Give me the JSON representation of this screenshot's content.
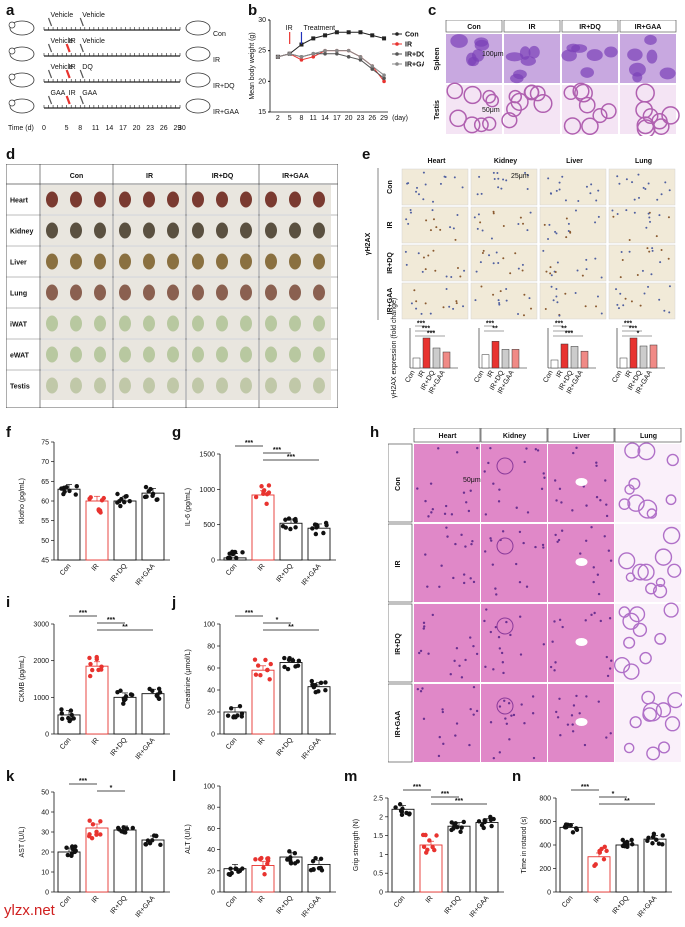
{
  "labels": {
    "a": "a",
    "b": "b",
    "c": "c",
    "d": "d",
    "e": "e",
    "f": "f",
    "g": "g",
    "h": "h",
    "i": "i",
    "j": "j",
    "k": "k",
    "l": "l",
    "m": "m",
    "n": "n"
  },
  "panel_a": {
    "rows": [
      {
        "top_labels": [
          "Vehicle",
          "Vehicle"
        ],
        "end_label": "Con"
      },
      {
        "top_labels": [
          "Vehicle",
          "IR",
          "Vehicle"
        ],
        "end_label": "IR"
      },
      {
        "top_labels": [
          "Vehicle",
          "IR",
          "DQ"
        ],
        "end_label": "IR+DQ"
      },
      {
        "top_labels": [
          "GAA",
          "IR",
          "GAA"
        ],
        "end_label": "IR+GAA"
      }
    ],
    "time_label": "Time (d)",
    "ticks": [
      "0",
      "5",
      "8",
      "11",
      "14",
      "17",
      "20",
      "23",
      "26",
      "29",
      "30"
    ]
  },
  "panel_b": {
    "ylabel": "Mean body weight (g)",
    "xlabel_unit": "(day)",
    "annot_ir": "IR",
    "annot_treat": "Treatment",
    "legend": [
      "Con",
      "IR",
      "IR+DQ",
      "IR+GAA"
    ]
  },
  "panel_c": {
    "cols": [
      "Con",
      "IR",
      "IR+DQ",
      "IR+GAA"
    ],
    "rows": [
      "Spleen",
      "Testis"
    ],
    "scale1": "100μm",
    "scale2": "50μm"
  },
  "panel_d": {
    "cols": [
      "Con",
      "IR",
      "IR+DQ",
      "IR+GAA"
    ],
    "rows": [
      "Heart",
      "Kidney",
      "Liver",
      "Lung",
      "iWAT",
      "eWAT",
      "Testis"
    ]
  },
  "panel_e": {
    "cols": [
      "Heart",
      "Kidney",
      "Liver",
      "Lung"
    ],
    "rows": [
      "Con",
      "IR",
      "IR+DQ",
      "IR+GAA"
    ],
    "side_label": "γH2AX",
    "scale": "25μm",
    "ylabel": "γH2AX expression (fold change)",
    "groups": [
      "Con",
      "IR",
      "IR+DQ",
      "IR+GAA"
    ]
  },
  "panel_h": {
    "cols": [
      "Heart",
      "Kidney",
      "Liver",
      "Lung"
    ],
    "rows": [
      "Con",
      "IR",
      "IR+DQ",
      "IR+GAA"
    ],
    "scale": "50μm"
  },
  "groups": [
    "Con",
    "IR",
    "IR+DQ",
    "IR+GAA"
  ],
  "watermark": "ylzx.net",
  "colors": {
    "red": "#e8332f",
    "pink": "#f08a86",
    "gray": "#9a9a9a",
    "he_pink": "#e088c8",
    "he_purple": "#b070c8",
    "ihc_bg": "#f1ead8"
  },
  "chart_data": [
    {
      "id": "b",
      "type": "line",
      "xlabel": "(day)",
      "ylabel": "Mean body weight (g)",
      "x": [
        2,
        5,
        8,
        11,
        14,
        17,
        20,
        23,
        26,
        29
      ],
      "ylim": [
        15,
        30
      ],
      "series": [
        {
          "name": "Con",
          "values": [
            24,
            24.5,
            26,
            27,
            27.5,
            28,
            28,
            28,
            27.5,
            27
          ]
        },
        {
          "name": "IR",
          "values": [
            24,
            24.5,
            23.5,
            24,
            25,
            25,
            25,
            24,
            22.5,
            20
          ]
        },
        {
          "name": "IR+DQ",
          "values": [
            24,
            24.5,
            24,
            24.5,
            24.5,
            24.5,
            24,
            23.5,
            22,
            20.5
          ]
        },
        {
          "name": "IR+GAA",
          "values": [
            24,
            24.5,
            24,
            24.5,
            25,
            25,
            25,
            24,
            22.5,
            21
          ]
        }
      ]
    },
    {
      "id": "e1",
      "type": "bar",
      "title": "Heart",
      "categories": [
        "Con",
        "IR",
        "IR+DQ",
        "IR+GAA"
      ],
      "values": [
        1,
        3,
        2,
        1.6
      ],
      "ylim": [
        0,
        4
      ],
      "ylabel": "γH2AX expression (fold change)",
      "sig": [
        "***",
        "***",
        "***"
      ]
    },
    {
      "id": "e2",
      "type": "bar",
      "title": "Kidney",
      "categories": [
        "Con",
        "IR",
        "IR+DQ",
        "IR+GAA"
      ],
      "values": [
        1,
        2,
        1.4,
        1.4
      ],
      "ylim": [
        0,
        3
      ],
      "sig": [
        "***",
        "**"
      ]
    },
    {
      "id": "e3",
      "type": "bar",
      "title": "Liver",
      "categories": [
        "Con",
        "IR",
        "IR+DQ",
        "IR+GAA"
      ],
      "values": [
        1,
        3,
        2.7,
        2.1
      ],
      "ylim": [
        0,
        5
      ],
      "sig": [
        "***",
        "**",
        "***"
      ]
    },
    {
      "id": "e4",
      "type": "bar",
      "title": "Lung",
      "categories": [
        "Con",
        "IR",
        "IR+DQ",
        "IR+GAA"
      ],
      "values": [
        1,
        3,
        2.2,
        2.3
      ],
      "ylim": [
        0,
        4
      ],
      "sig": [
        "***",
        "***",
        "*"
      ]
    },
    {
      "id": "f",
      "type": "bar",
      "ylabel": "Klotho (pg/mL)",
      "categories": [
        "Con",
        "IR",
        "IR+DQ",
        "IR+GAA"
      ],
      "values": [
        63,
        60,
        60,
        62
      ],
      "ylim": [
        45,
        75
      ],
      "yticks": [
        45,
        50,
        55,
        60,
        65,
        70,
        75
      ],
      "sig": []
    },
    {
      "id": "g",
      "type": "bar",
      "ylabel": "IL-6 (pg/mL)",
      "categories": [
        "Con",
        "IR",
        "IR+DQ",
        "IR+GAA"
      ],
      "values": [
        30,
        920,
        520,
        450
      ],
      "ylim": [
        0,
        1500
      ],
      "yticks": [
        0,
        500,
        1000,
        1500
      ],
      "sig": [
        "***",
        "***",
        "***"
      ]
    },
    {
      "id": "i",
      "type": "bar",
      "ylabel": "CKMB (pg/mL)",
      "categories": [
        "Con",
        "IR",
        "IR+DQ",
        "IR+GAA"
      ],
      "values": [
        520,
        1850,
        1000,
        1100
      ],
      "ylim": [
        0,
        3000
      ],
      "yticks": [
        0,
        1000,
        2000,
        3000
      ],
      "sig": [
        "***",
        "***",
        "**"
      ]
    },
    {
      "id": "j",
      "type": "bar",
      "ylabel": "Creatinine (μmol/L)",
      "categories": [
        "Con",
        "IR",
        "IR+DQ",
        "IR+GAA"
      ],
      "values": [
        20,
        58,
        65,
        43
      ],
      "ylim": [
        0,
        100
      ],
      "yticks": [
        0,
        20,
        40,
        60,
        80,
        100
      ],
      "sig": [
        "***",
        "*",
        "**"
      ]
    },
    {
      "id": "k",
      "type": "bar",
      "ylabel": "AST (U/L)",
      "categories": [
        "Con",
        "IR",
        "IR+DQ",
        "IR+GAA"
      ],
      "values": [
        20,
        32,
        31,
        26
      ],
      "ylim": [
        0,
        50
      ],
      "yticks": [
        0,
        10,
        20,
        30,
        40,
        50
      ],
      "sig": [
        "***",
        "*"
      ]
    },
    {
      "id": "l",
      "type": "bar",
      "ylabel": "ALT (U/L)",
      "categories": [
        "Con",
        "IR",
        "IR+DQ",
        "IR+GAA"
      ],
      "values": [
        22,
        25,
        33,
        26
      ],
      "ylim": [
        0,
        100
      ],
      "yticks": [
        0,
        20,
        40,
        60,
        80,
        100
      ],
      "sig": []
    },
    {
      "id": "m",
      "type": "bar",
      "ylabel": "Grip strength (N)",
      "categories": [
        "Con",
        "IR",
        "IR+DQ",
        "IR+GAA"
      ],
      "values": [
        2.2,
        1.25,
        1.75,
        1.85
      ],
      "ylim": [
        0,
        2.5
      ],
      "yticks": [
        0,
        0.5,
        1.0,
        1.5,
        2.0,
        2.5
      ],
      "sig": [
        "***",
        "***",
        "***"
      ]
    },
    {
      "id": "n",
      "type": "bar",
      "ylabel": "Time in rotarod (s)",
      "categories": [
        "Con",
        "IR",
        "IR+DQ",
        "IR+GAA"
      ],
      "values": [
        550,
        300,
        400,
        450
      ],
      "ylim": [
        0,
        800
      ],
      "yticks": [
        0,
        200,
        400,
        600,
        800
      ],
      "sig": [
        "***",
        "*",
        "**"
      ]
    }
  ]
}
